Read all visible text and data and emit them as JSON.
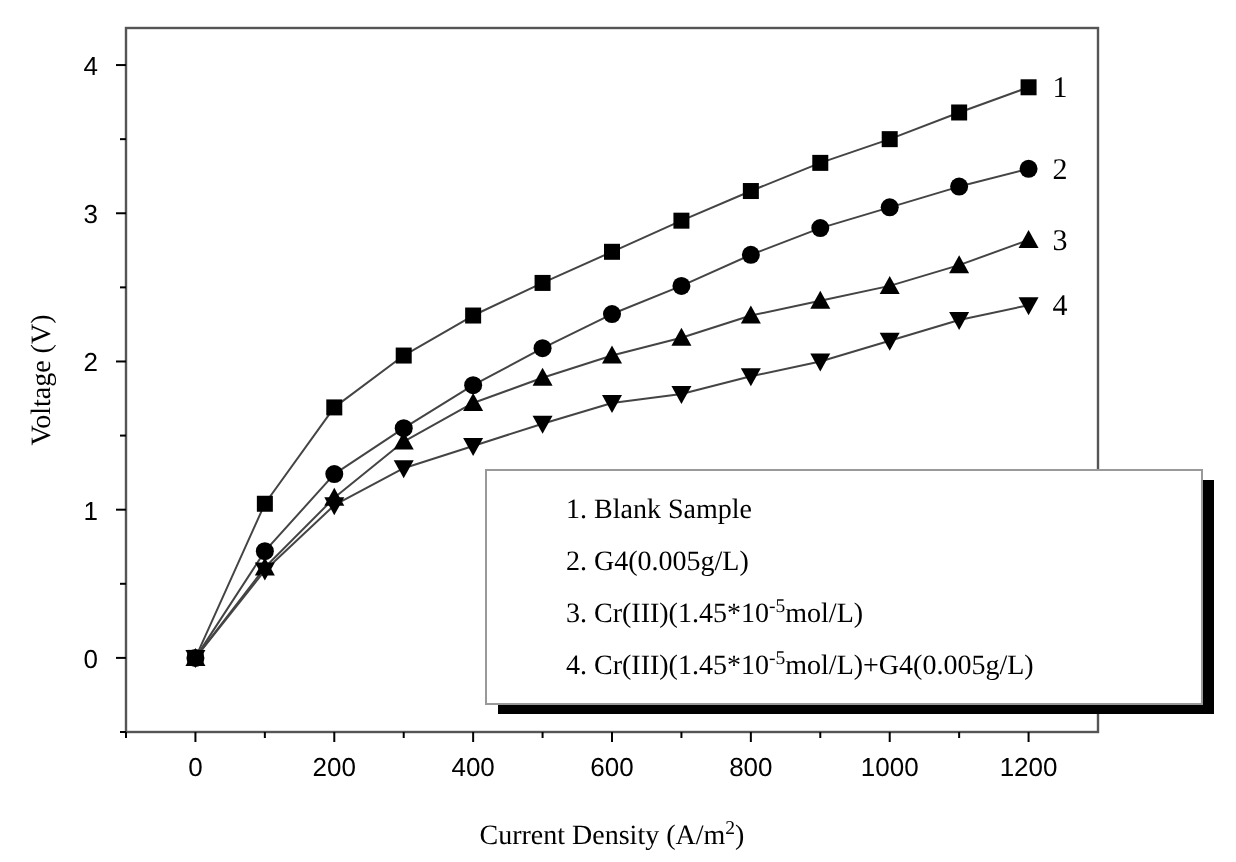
{
  "chart_data": {
    "type": "line",
    "xlabel": "Current Density (A/m$^{2}$)",
    "ylabel": "Voltage (V)",
    "x": [
      0,
      100,
      200,
      300,
      400,
      500,
      600,
      700,
      800,
      900,
      1000,
      1100,
      1200
    ],
    "series": [
      {
        "name": "1",
        "color": "#000000",
        "marker": "square",
        "values": [
          0,
          1.04,
          1.69,
          2.04,
          2.31,
          2.53,
          2.74,
          2.95,
          3.15,
          3.34,
          3.5,
          3.68,
          3.85
        ]
      },
      {
        "name": "2",
        "color": "#000000",
        "marker": "circle",
        "values": [
          0,
          0.72,
          1.24,
          1.55,
          1.84,
          2.09,
          2.32,
          2.51,
          2.72,
          2.9,
          3.04,
          3.18,
          3.3
        ]
      },
      {
        "name": "3",
        "color": "#000000",
        "marker": "triangle",
        "values": [
          0,
          0.61,
          1.08,
          1.46,
          1.72,
          1.89,
          2.04,
          2.16,
          2.31,
          2.41,
          2.51,
          2.65,
          2.82
        ]
      },
      {
        "name": "4",
        "color": "#000000",
        "marker": "triangle-down",
        "values": [
          0,
          0.59,
          1.03,
          1.28,
          1.43,
          1.58,
          1.72,
          1.78,
          1.9,
          2.0,
          2.14,
          2.28,
          2.38
        ]
      }
    ],
    "xlim": [
      -100,
      1300
    ],
    "xticks": [
      {
        "value": -100,
        "label": null
      },
      0,
      {
        "value": 100,
        "label": null
      },
      200,
      {
        "value": 300,
        "label": null
      },
      400,
      {
        "value": 500,
        "label": null
      },
      600,
      {
        "value": 700,
        "label": null
      },
      800,
      {
        "value": 900,
        "label": null
      },
      1000,
      {
        "value": 1100,
        "label": null
      },
      1200
    ],
    "ylim": [
      -0.5,
      4.25
    ],
    "yticks": [
      {
        "value": -0.5,
        "label": null
      },
      0,
      {
        "value": 0.5,
        "label": null
      },
      1,
      {
        "value": 1.5,
        "label": null
      },
      2,
      {
        "value": 2.5,
        "label": null
      },
      3,
      {
        "value": 3.5,
        "label": null
      },
      4
    ],
    "line_style": "solid",
    "grid": false,
    "annotations": [
      "1. Blank Sample",
      "2. G4(0.005g/L)",
      "3. Cr(III)(1.45*10$^{-5}$mol/L)",
      "4. Cr(III)(1.45*10$^{-5}$mol/L)+G4(0.005g/L)"
    ]
  }
}
